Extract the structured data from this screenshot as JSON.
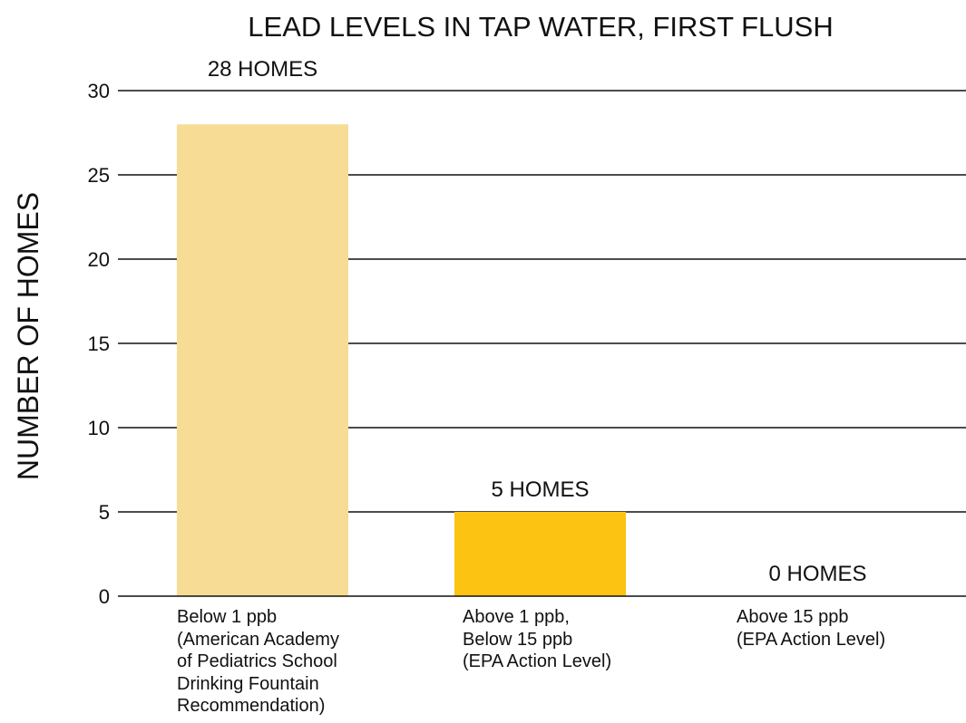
{
  "chart_data": {
    "type": "bar",
    "title": "LEAD LEVELS IN TAP WATER, FIRST FLUSH",
    "ylabel": "NUMBER OF HOMES",
    "categories": [
      "Below 1 ppb\n(American Academy\nof Pediatrics School\nDrinking Fountain\nRecommendation)",
      "Above 1 ppb,\nBelow 15 ppb\n(EPA Action Level)",
      "Above 15 ppb\n(EPA Action Level)"
    ],
    "values": [
      28,
      5,
      0
    ],
    "data_labels": [
      "28 HOMES",
      "5 HOMES",
      "0 HOMES"
    ],
    "bar_colors": [
      "#F6DC95",
      "#FDC313",
      "#FDC313"
    ],
    "ylim": [
      0,
      30
    ],
    "yticks": [
      0,
      5,
      10,
      15,
      20,
      25,
      30
    ],
    "grid": true,
    "legend": false
  }
}
